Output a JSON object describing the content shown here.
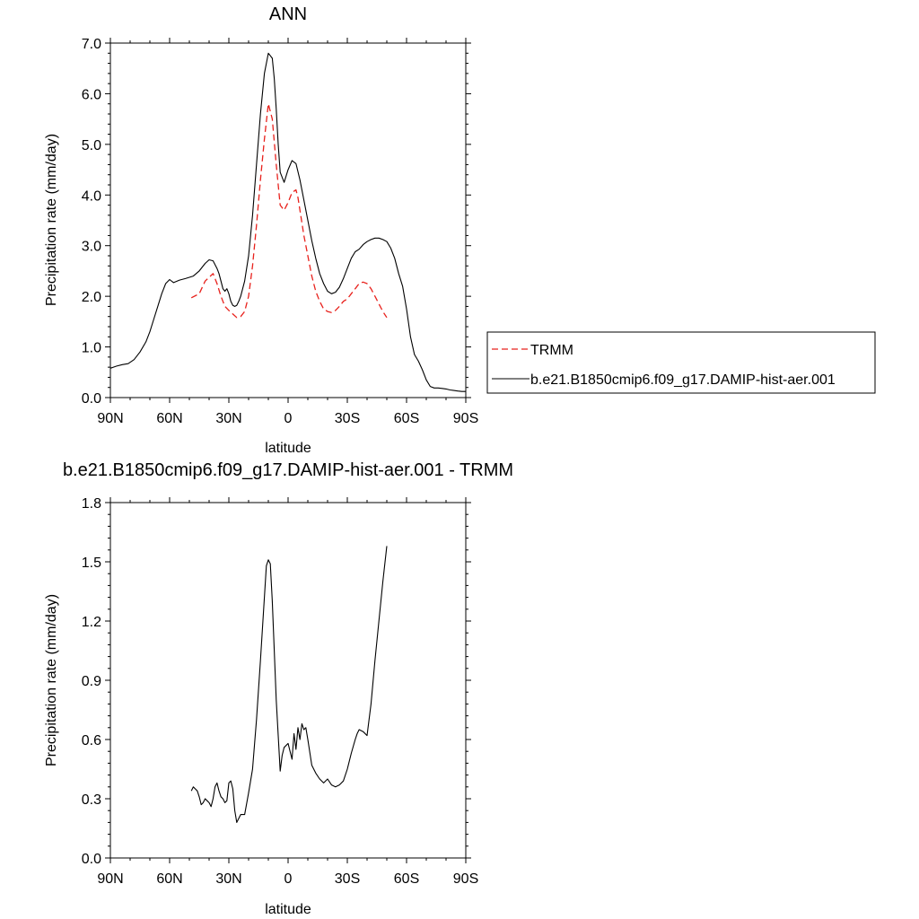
{
  "chart_data": [
    {
      "type": "line",
      "title": "ANN",
      "xlabel": "latitude",
      "ylabel": "Precipitation rate (mm/day)",
      "xlim": [
        90,
        -90
      ],
      "ylim": [
        0,
        7
      ],
      "x_ticks": [
        90,
        60,
        30,
        0,
        -30,
        -60,
        -90
      ],
      "x_tick_labels": [
        "90N",
        "60N",
        "30N",
        "0",
        "30S",
        "60S",
        "90S"
      ],
      "y_ticks": [
        0,
        1,
        2,
        3,
        4,
        5,
        6,
        7
      ],
      "y_tick_labels": [
        "0.0",
        "1.0",
        "2.0",
        "3.0",
        "4.0",
        "5.0",
        "6.0",
        "7.0"
      ],
      "grid": false,
      "legend_position": "right-outside",
      "series": [
        {
          "name": "TRMM",
          "color": "#e8211c",
          "dash": "dashed",
          "x": [
            49,
            45,
            42,
            38,
            36,
            34,
            32,
            30,
            28,
            26,
            24,
            22,
            20,
            18,
            16,
            14,
            12,
            10,
            8,
            6,
            4,
            2,
            0,
            -2,
            -4,
            -5,
            -6,
            -8,
            -10,
            -12,
            -14,
            -16,
            -18,
            -20,
            -22,
            -24,
            -26,
            -28,
            -30,
            -32,
            -34,
            -36,
            -38,
            -40,
            -42,
            -44,
            -46,
            -48,
            -50
          ],
          "y": [
            1.97,
            2.05,
            2.3,
            2.45,
            2.25,
            2.0,
            1.8,
            1.72,
            1.65,
            1.58,
            1.6,
            1.7,
            2.0,
            2.6,
            3.4,
            4.3,
            5.1,
            5.8,
            5.5,
            4.6,
            3.8,
            3.7,
            3.85,
            4.05,
            4.1,
            3.95,
            3.7,
            3.2,
            2.8,
            2.4,
            2.1,
            1.9,
            1.75,
            1.7,
            1.68,
            1.72,
            1.8,
            1.9,
            1.95,
            2.05,
            2.15,
            2.25,
            2.28,
            2.25,
            2.15,
            2.0,
            1.85,
            1.7,
            1.58
          ]
        },
        {
          "name": "b.e21.B1850cmip6.f09_g17.DAMIP-hist-aer.001",
          "color": "#000000",
          "dash": "solid",
          "x": [
            90,
            87,
            84,
            81,
            78,
            75,
            72,
            70,
            68,
            66,
            64,
            62,
            60,
            58,
            55,
            52,
            48,
            45,
            42,
            40,
            38,
            36,
            35,
            34,
            33,
            32,
            31,
            30,
            29,
            28,
            27,
            26,
            25,
            24,
            22,
            20,
            18,
            16,
            14,
            12,
            10,
            8,
            7,
            6,
            5,
            4,
            2,
            0,
            -2,
            -4,
            -6,
            -8,
            -10,
            -12,
            -14,
            -16,
            -18,
            -20,
            -22,
            -24,
            -26,
            -28,
            -30,
            -32,
            -34,
            -36,
            -38,
            -40,
            -42,
            -44,
            -46,
            -48,
            -50,
            -52,
            -54,
            -56,
            -58,
            -60,
            -62,
            -64,
            -66,
            -68,
            -70,
            -72,
            -74,
            -76,
            -78,
            -80,
            -82,
            -84,
            -86,
            -88,
            -90
          ],
          "y": [
            0.58,
            0.62,
            0.65,
            0.67,
            0.75,
            0.9,
            1.1,
            1.3,
            1.55,
            1.8,
            2.05,
            2.25,
            2.33,
            2.27,
            2.32,
            2.35,
            2.4,
            2.5,
            2.65,
            2.72,
            2.7,
            2.55,
            2.45,
            2.3,
            2.15,
            2.1,
            2.15,
            2.05,
            1.9,
            1.82,
            1.8,
            1.82,
            1.9,
            2.0,
            2.3,
            2.8,
            3.6,
            4.6,
            5.6,
            6.4,
            6.8,
            6.7,
            6.3,
            5.7,
            5.0,
            4.45,
            4.25,
            4.5,
            4.68,
            4.62,
            4.3,
            3.9,
            3.5,
            3.1,
            2.75,
            2.45,
            2.25,
            2.1,
            2.05,
            2.08,
            2.18,
            2.35,
            2.55,
            2.75,
            2.88,
            2.93,
            3.02,
            3.08,
            3.12,
            3.15,
            3.15,
            3.12,
            3.08,
            2.95,
            2.75,
            2.45,
            2.2,
            1.75,
            1.2,
            0.85,
            0.72,
            0.55,
            0.35,
            0.22,
            0.19,
            0.19,
            0.18,
            0.17,
            0.15,
            0.14,
            0.13,
            0.12,
            0.12
          ]
        }
      ]
    },
    {
      "type": "line",
      "title": "b.e21.B1850cmip6.f09_g17.DAMIP-hist-aer.001 - TRMM",
      "xlabel": "latitude",
      "ylabel": "Precipitation rate (mm/day)",
      "xlim": [
        90,
        -90
      ],
      "ylim": [
        0,
        1.8
      ],
      "x_ticks": [
        90,
        60,
        30,
        0,
        -30,
        -60,
        -90
      ],
      "x_tick_labels": [
        "90N",
        "60N",
        "30N",
        "0",
        "30S",
        "60S",
        "90S"
      ],
      "y_ticks": [
        0,
        0.3,
        0.6,
        0.9,
        1.2,
        1.5,
        1.8
      ],
      "y_tick_labels": [
        "0.0",
        "0.3",
        "0.6",
        "0.9",
        "1.2",
        "1.5",
        "1.8"
      ],
      "grid": false,
      "series": [
        {
          "color": "#000000",
          "dash": "solid",
          "x": [
            49,
            48,
            47,
            46,
            45,
            44,
            43,
            42,
            41,
            40,
            39,
            38,
            37,
            36,
            35,
            34,
            33,
            32,
            31,
            30,
            29,
            28,
            27,
            26,
            25,
            24,
            22,
            20,
            18,
            16,
            14,
            12,
            11,
            10,
            9,
            8,
            6,
            4,
            3,
            2,
            0,
            -2,
            -3,
            -4,
            -5,
            -6,
            -7,
            -8,
            -9,
            -10,
            -12,
            -14,
            -16,
            -18,
            -20,
            -22,
            -24,
            -26,
            -28,
            -30,
            -32,
            -34,
            -35,
            -36,
            -38,
            -40,
            -42,
            -44,
            -46,
            -48,
            -50
          ],
          "y": [
            0.34,
            0.36,
            0.35,
            0.34,
            0.31,
            0.27,
            0.28,
            0.3,
            0.29,
            0.28,
            0.26,
            0.3,
            0.36,
            0.38,
            0.34,
            0.31,
            0.3,
            0.28,
            0.29,
            0.38,
            0.39,
            0.35,
            0.24,
            0.18,
            0.2,
            0.22,
            0.22,
            0.33,
            0.45,
            0.7,
            1.0,
            1.32,
            1.48,
            1.51,
            1.49,
            1.3,
            0.8,
            0.44,
            0.52,
            0.56,
            0.58,
            0.5,
            0.63,
            0.55,
            0.66,
            0.6,
            0.68,
            0.65,
            0.66,
            0.6,
            0.47,
            0.43,
            0.4,
            0.38,
            0.4,
            0.37,
            0.36,
            0.37,
            0.39,
            0.45,
            0.53,
            0.6,
            0.63,
            0.65,
            0.64,
            0.62,
            0.78,
            1.0,
            1.2,
            1.4,
            1.58
          ]
        }
      ]
    }
  ]
}
